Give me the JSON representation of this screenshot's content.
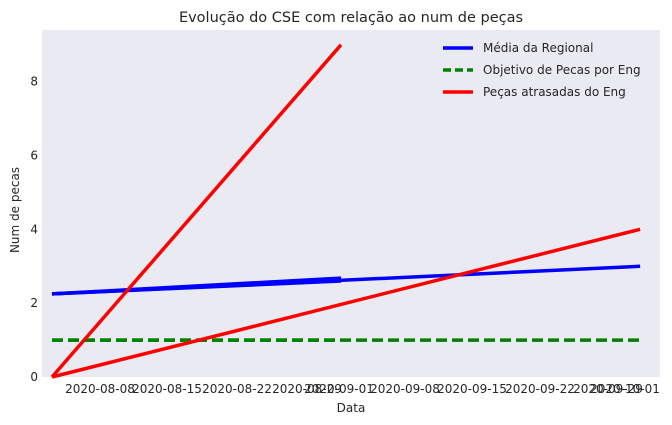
{
  "chart_data": {
    "type": "line",
    "title": "Evolução do CSE com relação ao num de peças",
    "xlabel": "Data",
    "ylabel": "Num de pecas",
    "x_axis": {
      "type": "date",
      "range": [
        "2020-08-02",
        "2020-10-03"
      ],
      "tick_labels": [
        "2020-08-08",
        "2020-08-15",
        "2020-08-22",
        "2020-08-29",
        "2020-09-01",
        "2020-09-08",
        "2020-09-15",
        "2020-09-22",
        "2020-09-29",
        "2020-10-01"
      ]
    },
    "y_axis": {
      "range": [
        0,
        9.4
      ],
      "ticks": [
        0,
        2,
        4,
        6,
        8
      ]
    },
    "grid": false,
    "legend_position": "top-right",
    "background": "#eaeaf2",
    "series": [
      {
        "name": "Média da Regional",
        "color": "#0000ff",
        "style": "solid",
        "segments": [
          {
            "x": [
              "2020-08-03",
              "2020-09-01"
            ],
            "y": [
              2.25,
              2.68
            ]
          },
          {
            "x": [
              "2020-08-03",
              "2020-09-01"
            ],
            "y": [
              2.25,
              2.6
            ]
          },
          {
            "x": [
              "2020-08-03",
              "2020-10-01"
            ],
            "y": [
              2.25,
              3.0
            ]
          }
        ]
      },
      {
        "name": "Objetivo de Pecas por Eng",
        "color": "#008000",
        "style": "dashed",
        "segments": [
          {
            "x": [
              "2020-08-03",
              "2020-09-01"
            ],
            "y": [
              1,
              1
            ]
          },
          {
            "x": [
              "2020-08-03",
              "2020-10-01"
            ],
            "y": [
              1,
              1
            ]
          }
        ]
      },
      {
        "name": "Peças atrasadas do Eng",
        "color": "#ff0000",
        "style": "solid",
        "segments": [
          {
            "x": [
              "2020-08-03",
              "2020-09-01"
            ],
            "y": [
              0,
              9
            ]
          },
          {
            "x": [
              "2020-08-03",
              "2020-10-01"
            ],
            "y": [
              0,
              4
            ]
          }
        ]
      }
    ]
  }
}
